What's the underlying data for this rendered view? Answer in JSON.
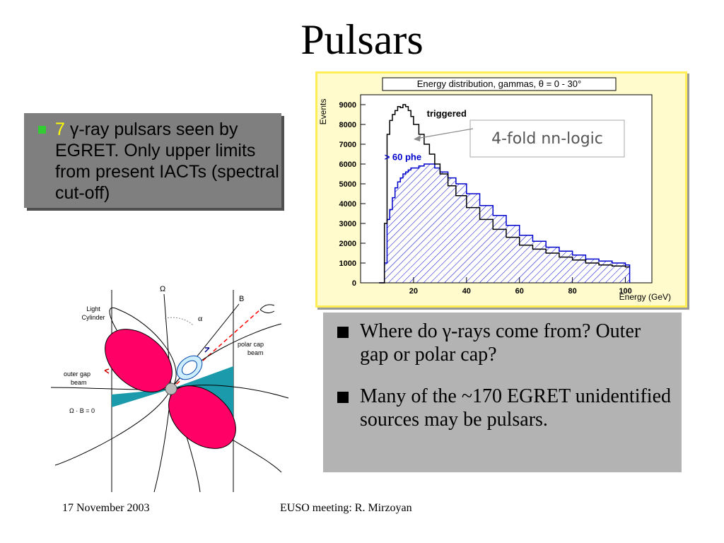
{
  "slide": {
    "title": "Pulsars",
    "left_bullet": {
      "number": "7",
      "text": " γ-ray pulsars seen by EGRET. Only upper limits from present IACTs (spectral cut-off)"
    },
    "right_bullets": [
      "Where do γ-rays come from? Outer gap or polar cap?",
      "Many of the ~170 EGRET unidentified sources may be pulsars."
    ],
    "footer_date": "17 November 2003",
    "footer_center": "EUSO meeting: R. Mirzoyan"
  },
  "diagram": {
    "omega": "Ω",
    "b": "B",
    "alpha": "α",
    "light_cylinder": [
      "Light",
      "Cylinder"
    ],
    "polar_cap_beam": [
      "polar cap",
      "beam"
    ],
    "outer_gap_beam": [
      "outer gap",
      "beam"
    ],
    "omega_b_zero": "Ω · B = 0"
  },
  "chart_data": {
    "type": "line",
    "title": "Energy distribution, gammas, θ = 0 - 30°",
    "xlabel": "Energy (GeV)",
    "ylabel": "Events",
    "xlim": [
      0,
      110
    ],
    "ylim": [
      0,
      9500
    ],
    "xticks": [
      20,
      40,
      60,
      80,
      100
    ],
    "yticks": [
      0,
      1000,
      2000,
      3000,
      4000,
      5000,
      6000,
      7000,
      8000,
      9000
    ],
    "annotation": "4-fold nn-logic",
    "series": [
      {
        "name": "triggered",
        "color": "#000000",
        "x": [
          7,
          9,
          10,
          11,
          12,
          13,
          14,
          15,
          16,
          17,
          18,
          19,
          20,
          22,
          24,
          26,
          28,
          30,
          33,
          36,
          40,
          45,
          50,
          55,
          60,
          65,
          70,
          75,
          80,
          85,
          90,
          95,
          100
        ],
        "y": [
          0,
          3000,
          7500,
          8200,
          8500,
          8700,
          8900,
          8850,
          9000,
          8900,
          8700,
          8400,
          8000,
          7500,
          7000,
          6500,
          6000,
          5500,
          4900,
          4400,
          3800,
          3200,
          2700,
          2300,
          1900,
          1700,
          1500,
          1300,
          1150,
          1000,
          900,
          850,
          800
        ]
      },
      {
        "name": "> 60 phe",
        "color": "#0000cc",
        "x": [
          7,
          9,
          10,
          11,
          12,
          13,
          14,
          15,
          16,
          17,
          18,
          19,
          20,
          22,
          24,
          26,
          28,
          30,
          33,
          36,
          40,
          45,
          50,
          55,
          60,
          65,
          70,
          75,
          80,
          85,
          90,
          95,
          100
        ],
        "y": [
          0,
          1000,
          3200,
          3700,
          4300,
          4800,
          5100,
          5300,
          5500,
          5600,
          5700,
          5800,
          5800,
          5900,
          6000,
          6000,
          5800,
          5600,
          5300,
          5000,
          4500,
          3900,
          3400,
          2900,
          2400,
          2100,
          1800,
          1600,
          1400,
          1200,
          1100,
          1000,
          900
        ]
      }
    ]
  }
}
